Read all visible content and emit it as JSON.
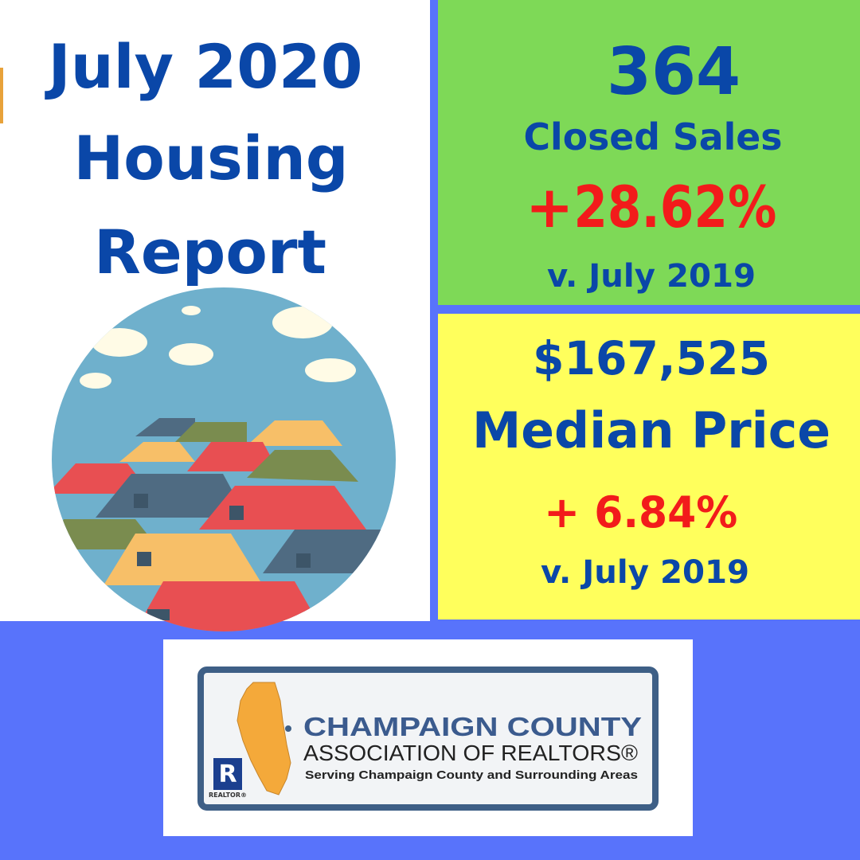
{
  "title": [
    "July 2020",
    "Housing",
    "Report"
  ],
  "closed_sales": {
    "value": "364",
    "label": "Closed Sales",
    "change_sign": "+",
    "change": "28.62%",
    "comparison": "v. July 2019"
  },
  "median_price": {
    "value": "$167,525",
    "label": "Median Price",
    "change_sign": "+",
    "change": "6.84%",
    "comparison": "v. July 2019"
  },
  "logo": {
    "name": "CHAMPAIGN COUNTY",
    "association": "ASSOCIATION OF REALTORS®",
    "tagline": "Serving Champaign County and Surrounding Areas",
    "badge": "R",
    "badge_label": "REALTOR®"
  }
}
